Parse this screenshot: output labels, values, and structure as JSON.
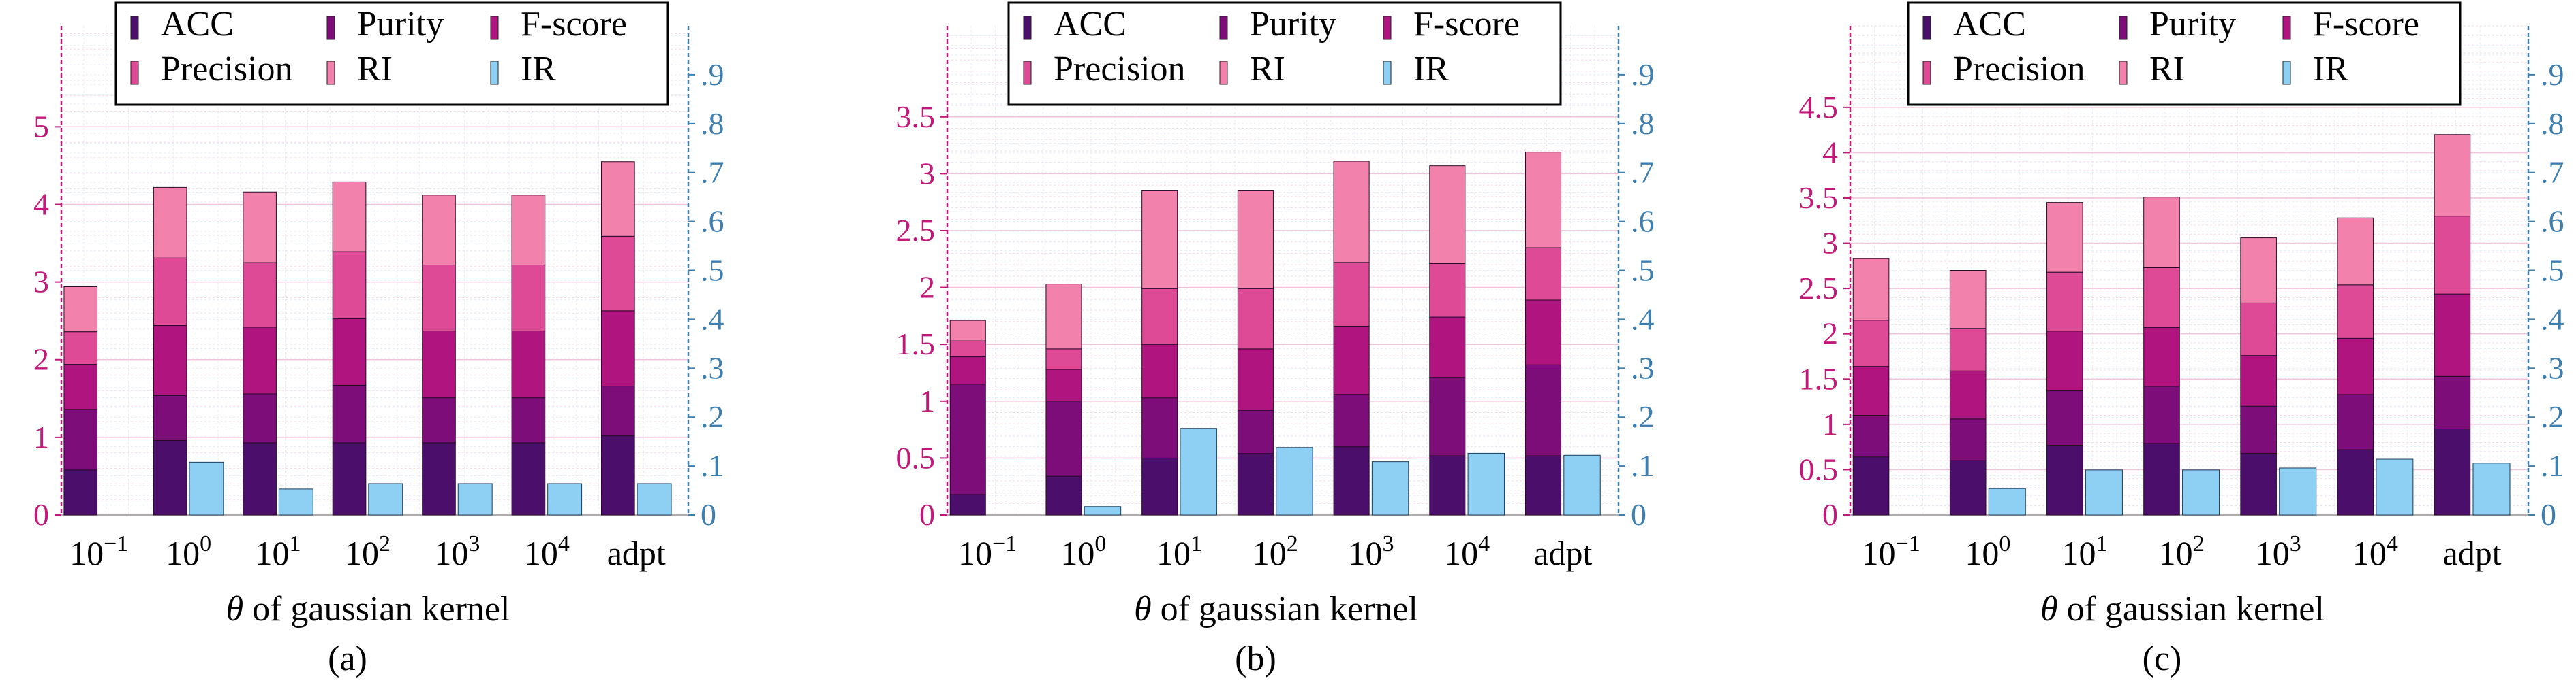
{
  "xlabel": "θ of gaussian kernel",
  "categories": [
    "10^-1",
    "10^0",
    "10^1",
    "10^2",
    "10^3",
    "10^4",
    "adpt"
  ],
  "legend": [
    "ACC",
    "Purity",
    "F-score",
    "Precision",
    "RI",
    "IR"
  ],
  "colors": {
    "ACC": "#4b0f6b",
    "Purity": "#7d0e79",
    "F-score": "#b0157f",
    "Precision": "#df4a97",
    "RI": "#f282ab",
    "IR": "#8ecff4",
    "left_axis": "#c2187a",
    "right_axis": "#3f7fb0"
  },
  "chart_data": [
    {
      "type": "bar",
      "subplot_label": "(a)",
      "xlabel": "θ of gaussian kernel",
      "categories": [
        "10^-1",
        "10^0",
        "10^1",
        "10^2",
        "10^3",
        "10^4",
        "adpt"
      ],
      "stacked_left_axis": true,
      "ylim_left": [
        0,
        6.3
      ],
      "yticks_left": [
        0,
        1,
        2,
        3,
        4,
        5
      ],
      "ylim_right": [
        0,
        1.0
      ],
      "yticks_right": [
        0,
        0.1,
        0.2,
        0.3,
        0.4,
        0.5,
        0.6,
        0.7,
        0.8,
        0.9
      ],
      "grid": true,
      "legend_position": "top-center",
      "series": [
        {
          "name": "ACC",
          "axis": "left",
          "values": [
            0.58,
            0.96,
            0.93,
            0.93,
            0.93,
            0.93,
            1.02
          ]
        },
        {
          "name": "Purity",
          "axis": "left",
          "values": [
            0.78,
            0.58,
            0.63,
            0.74,
            0.58,
            0.58,
            0.64
          ]
        },
        {
          "name": "F-score",
          "axis": "left",
          "values": [
            0.58,
            0.9,
            0.86,
            0.86,
            0.86,
            0.86,
            0.97
          ]
        },
        {
          "name": "Precision",
          "axis": "left",
          "values": [
            0.42,
            0.87,
            0.83,
            0.86,
            0.85,
            0.85,
            0.96
          ]
        },
        {
          "name": "RI",
          "axis": "left",
          "values": [
            0.58,
            0.91,
            0.91,
            0.9,
            0.9,
            0.9,
            0.96
          ]
        },
        {
          "name": "IR",
          "axis": "right",
          "values": [
            0.0,
            0.108,
            0.053,
            0.064,
            0.064,
            0.064,
            0.064
          ]
        }
      ]
    },
    {
      "type": "bar",
      "subplot_label": "(b)",
      "xlabel": "θ of gaussian kernel",
      "categories": [
        "10^-1",
        "10^0",
        "10^1",
        "10^2",
        "10^3",
        "10^4",
        "adpt"
      ],
      "stacked_left_axis": true,
      "ylim_left": [
        0,
        4.3
      ],
      "yticks_left": [
        0,
        0.5,
        1.0,
        1.5,
        2.0,
        2.5,
        3.0,
        3.5
      ],
      "ylim_right": [
        0,
        1.0
      ],
      "yticks_right": [
        0,
        0.1,
        0.2,
        0.3,
        0.4,
        0.5,
        0.6,
        0.7,
        0.8,
        0.9
      ],
      "grid": true,
      "legend_position": "top-center",
      "series": [
        {
          "name": "ACC",
          "axis": "left",
          "values": [
            0.18,
            0.34,
            0.5,
            0.54,
            0.6,
            0.52,
            0.52
          ]
        },
        {
          "name": "Purity",
          "axis": "left",
          "values": [
            0.97,
            0.66,
            0.53,
            0.38,
            0.46,
            0.69,
            0.8
          ]
        },
        {
          "name": "F-score",
          "axis": "left",
          "values": [
            0.24,
            0.28,
            0.47,
            0.54,
            0.6,
            0.53,
            0.57
          ]
        },
        {
          "name": "Precision",
          "axis": "left",
          "values": [
            0.14,
            0.18,
            0.49,
            0.53,
            0.56,
            0.47,
            0.46
          ]
        },
        {
          "name": "RI",
          "axis": "left",
          "values": [
            0.18,
            0.57,
            0.86,
            0.86,
            0.89,
            0.86,
            0.84
          ]
        },
        {
          "name": "IR",
          "axis": "right",
          "values": [
            0.0,
            0.017,
            0.177,
            0.138,
            0.109,
            0.126,
            0.122
          ]
        }
      ]
    },
    {
      "type": "bar",
      "subplot_label": "(c)",
      "xlabel": "θ of gaussian kernel",
      "categories": [
        "10^-1",
        "10^0",
        "10^1",
        "10^2",
        "10^3",
        "10^4",
        "adpt"
      ],
      "stacked_left_axis": true,
      "ylim_left": [
        0,
        5.4
      ],
      "yticks_left": [
        0,
        0.5,
        1.0,
        1.5,
        2.0,
        2.5,
        3.0,
        3.5,
        4.0,
        4.5
      ],
      "ylim_right": [
        0,
        1.0
      ],
      "yticks_right": [
        0,
        0.1,
        0.2,
        0.3,
        0.4,
        0.5,
        0.6,
        0.7,
        0.8,
        0.9
      ],
      "grid": true,
      "legend_position": "top-center",
      "series": [
        {
          "name": "ACC",
          "axis": "left",
          "values": [
            0.64,
            0.6,
            0.77,
            0.79,
            0.68,
            0.72,
            0.95
          ]
        },
        {
          "name": "Purity",
          "axis": "left",
          "values": [
            0.46,
            0.46,
            0.6,
            0.63,
            0.52,
            0.61,
            0.58
          ]
        },
        {
          "name": "F-score",
          "axis": "left",
          "values": [
            0.54,
            0.53,
            0.66,
            0.65,
            0.56,
            0.62,
            0.91
          ]
        },
        {
          "name": "Precision",
          "axis": "left",
          "values": [
            0.51,
            0.47,
            0.65,
            0.66,
            0.58,
            0.59,
            0.86
          ]
        },
        {
          "name": "RI",
          "axis": "left",
          "values": [
            0.68,
            0.64,
            0.77,
            0.78,
            0.72,
            0.74,
            0.9
          ]
        },
        {
          "name": "IR",
          "axis": "right",
          "values": [
            0.0,
            0.054,
            0.092,
            0.092,
            0.096,
            0.114,
            0.106
          ]
        }
      ]
    }
  ]
}
